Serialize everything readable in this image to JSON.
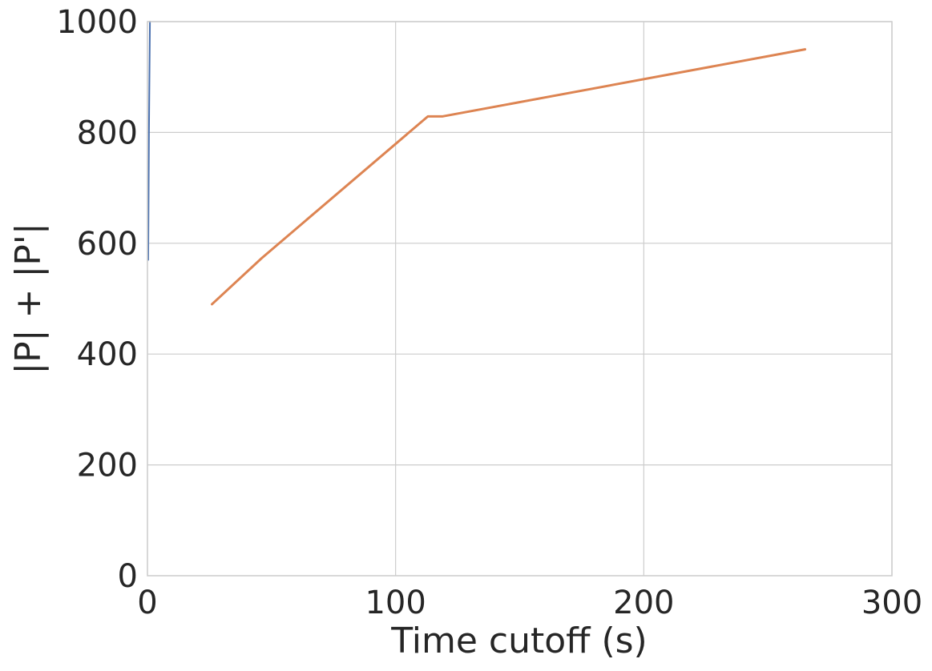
{
  "chart_data": {
    "type": "line",
    "xlabel": "Time cutoff (s)",
    "ylabel": "|P| + |P'|",
    "xlim": [
      0,
      300
    ],
    "ylim": [
      0,
      1000
    ],
    "x_ticks": [
      0,
      100,
      200,
      300
    ],
    "y_ticks": [
      0,
      200,
      400,
      600,
      800,
      1000
    ],
    "grid": true,
    "legend": "none",
    "series": [
      {
        "color": "#4c72b0",
        "x": [
          0.3,
          0.6,
          1
        ],
        "y": [
          570,
          800,
          1000
        ]
      },
      {
        "color": "#dd8452",
        "x": [
          26,
          46,
          113,
          119,
          265
        ],
        "y": [
          490,
          573,
          829,
          829,
          950
        ]
      }
    ]
  }
}
